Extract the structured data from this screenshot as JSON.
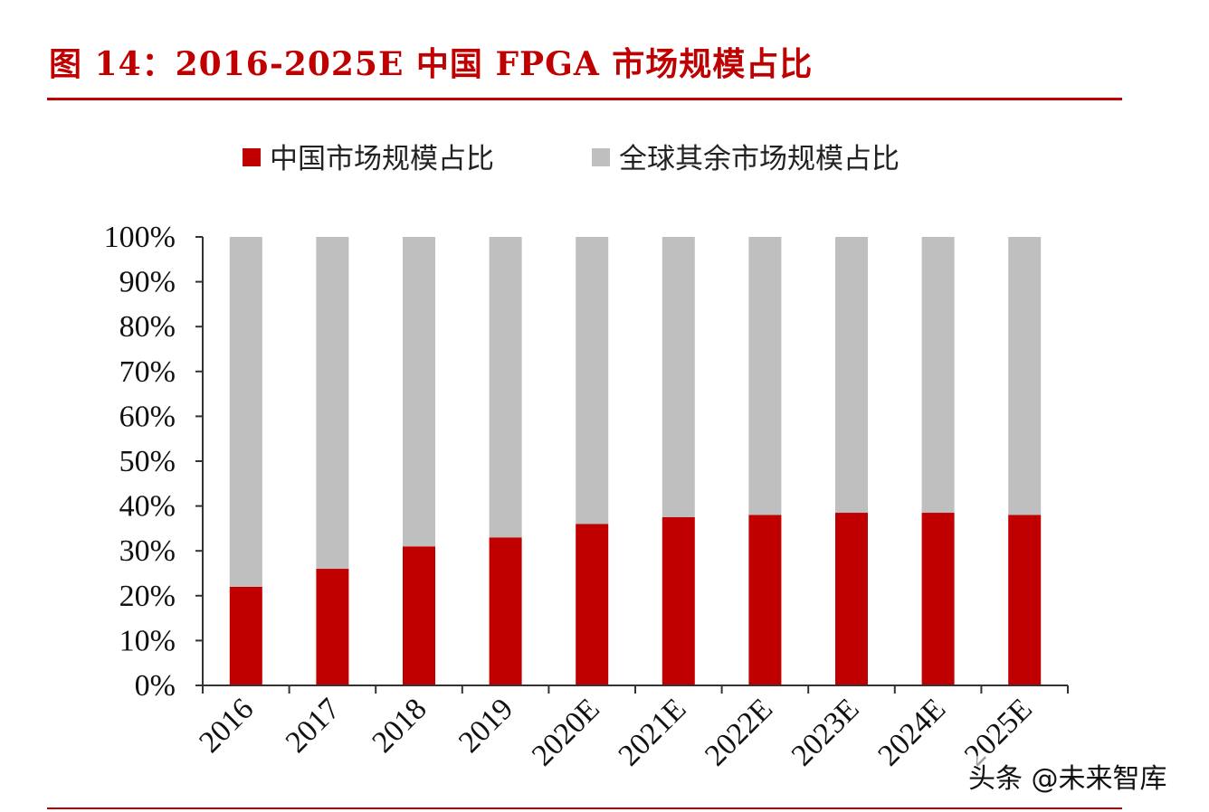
{
  "title": "图 14：2016-2025E 中国 FPGA 市场规模占比",
  "watermark": "头条 @未来智库",
  "colors": {
    "china": "#c00000",
    "rest": "#bfbfbf",
    "title": "#c00000"
  },
  "chart_data": {
    "type": "bar",
    "stacked": true,
    "categories": [
      "2016",
      "2017",
      "2018",
      "2019",
      "2020E",
      "2021E",
      "2022E",
      "2023E",
      "2024E",
      "2025E"
    ],
    "series": [
      {
        "name": "中国市场规模占比",
        "values": [
          22,
          26,
          31,
          33,
          36,
          37.5,
          38,
          38.5,
          38.5,
          38
        ]
      },
      {
        "name": "全球其余市场规模占比",
        "values": [
          78,
          74,
          69,
          67,
          64,
          62.5,
          62,
          61.5,
          61.5,
          62
        ]
      }
    ],
    "yticks": [
      "0%",
      "10%",
      "20%",
      "30%",
      "40%",
      "50%",
      "60%",
      "70%",
      "80%",
      "90%",
      "100%"
    ],
    "ylim": [
      0,
      100
    ],
    "legend_position": "top",
    "grid": false
  }
}
